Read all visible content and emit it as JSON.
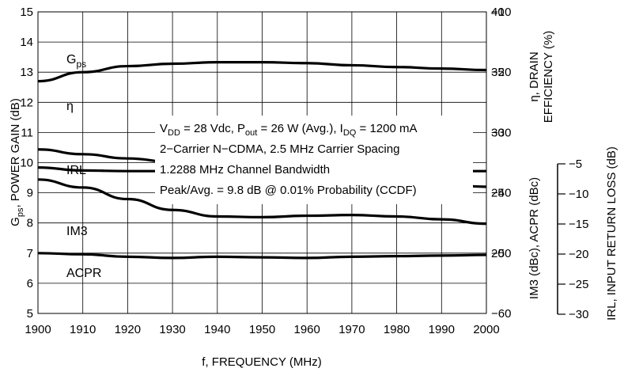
{
  "chart_data": {
    "type": "line",
    "xlabel": "f, FREQUENCY (MHz)",
    "x_ticks": [
      "1900",
      "1910",
      "1920",
      "1930",
      "1940",
      "1950",
      "1960",
      "1970",
      "1980",
      "1990",
      "2000"
    ],
    "xlim": [
      1900,
      2000
    ],
    "left_axis": {
      "label_main": "G",
      "label_sub": "ps",
      "label_rest": ",  POWER GAIN (dB)",
      "ylim": [
        5,
        15
      ],
      "ticks": [
        "5",
        "6",
        "7",
        "8",
        "9",
        "10",
        "11",
        "12",
        "13",
        "14",
        "15"
      ]
    },
    "right_axis_1": {
      "label_line1": "η, DRAIN",
      "label_line2": "EFFICIENCY (%)",
      "ylim": [
        15,
        40
      ],
      "ticks": [
        "20",
        "25",
        "30",
        "35",
        "40"
      ]
    },
    "right_axis_2": {
      "label": "IM3 (dBc), ACPR (dBc)",
      "ylim": [
        -60,
        -10
      ],
      "ticks": [
        "−10",
        "−20",
        "−30",
        "−40",
        "−50",
        "−60"
      ]
    },
    "right_axis_3": {
      "label": "IRL,  INPUT RETURN LOSS (dB)",
      "ylim": [
        -30,
        -5
      ],
      "ticks": [
        "−5",
        "−10",
        "−15",
        "−20",
        "−25",
        "−30"
      ]
    },
    "series": [
      {
        "name": "Gps",
        "label_main": "G",
        "label_sub": "ps",
        "axis": "left",
        "x": [
          1900,
          1910,
          1920,
          1930,
          1940,
          1950,
          1960,
          1970,
          1980,
          1990,
          2000
        ],
        "y": [
          12.7,
          13.0,
          13.2,
          13.28,
          13.33,
          13.33,
          13.3,
          13.23,
          13.17,
          13.12,
          13.07
        ]
      },
      {
        "name": "η",
        "axis": "r1",
        "x": [
          1900,
          1910,
          1920,
          1930,
          1940,
          1950,
          1960,
          1970,
          1980,
          1990,
          2000
        ],
        "y": [
          28.6,
          28.2,
          27.85,
          27.55,
          27.25,
          26.95,
          26.6,
          26.35,
          26.0,
          25.7,
          25.5
        ]
      },
      {
        "name": "IRL",
        "axis": "r3",
        "x": [
          1900,
          1910,
          1920,
          1930,
          1940,
          1950,
          1960,
          1970,
          1980,
          1990,
          2000
        ],
        "y": [
          -11.5,
          -12.6,
          -14.2,
          -15.7,
          -16.6,
          -16.7,
          -16.5,
          -16.4,
          -16.6,
          -17.0,
          -17.6
        ]
      },
      {
        "name": "IM3",
        "axis": "r2",
        "x": [
          1900,
          1910,
          1920,
          1930,
          1940,
          1950,
          1960,
          1970,
          1980,
          1990,
          2000
        ],
        "y": [
          -35.8,
          -36.3,
          -36.4,
          -36.4,
          -36.4,
          -36.4,
          -36.4,
          -36.4,
          -36.4,
          -36.4,
          -36.4
        ]
      },
      {
        "name": "ACPR",
        "axis": "r2",
        "x": [
          1900,
          1910,
          1920,
          1930,
          1940,
          1950,
          1960,
          1970,
          1980,
          1990,
          2000
        ],
        "y": [
          -50.0,
          -50.2,
          -50.6,
          -50.8,
          -50.6,
          -50.7,
          -50.8,
          -50.6,
          -50.5,
          -50.4,
          -50.3
        ]
      }
    ],
    "annotation": {
      "line1": {
        "v": "V",
        "v_sub": "DD",
        "a": " = 28 Vdc, P",
        "p_sub": "out",
        "b": " = 26 W (Avg.), I",
        "i_sub": "DQ",
        "c": " = 1200 mA"
      },
      "line2": "2−Carrier N−CDMA, 2.5 MHz Carrier Spacing",
      "line3": "1.2288 MHz Channel Bandwidth",
      "line4": "Peak/Avg. = 9.8 dB @ 0.01% Probability (CCDF)"
    },
    "grid": true
  }
}
